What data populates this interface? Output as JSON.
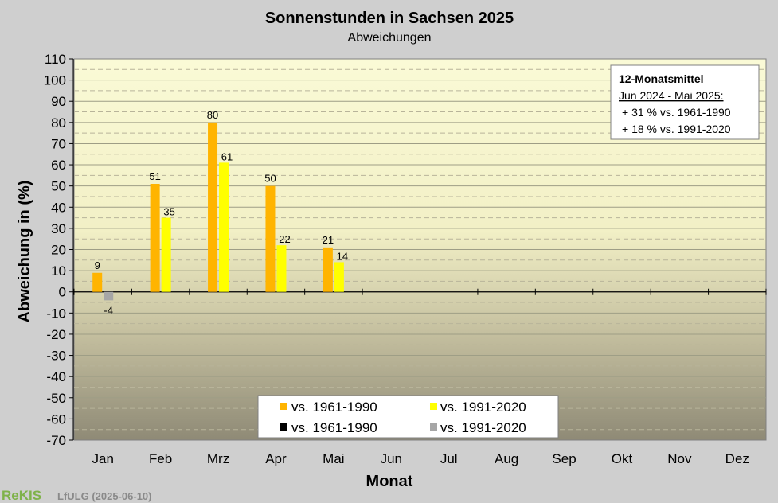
{
  "chart_data": {
    "type": "bar",
    "title": "Sonnenstunden  in Sachsen 2025",
    "subtitle": "Abweichungen",
    "xlabel": "Monat",
    "ylabel": "Abweichung in (%)",
    "ylim": [
      -70,
      110
    ],
    "yticks": [
      110,
      100,
      90,
      80,
      70,
      60,
      50,
      40,
      30,
      20,
      10,
      0,
      -10,
      -20,
      -30,
      -40,
      -50,
      -60,
      -70
    ],
    "categories": [
      "Jan",
      "Feb",
      "Mrz",
      "Apr",
      "Mai",
      "Jun",
      "Jul",
      "Aug",
      "Sep",
      "Okt",
      "Nov",
      "Dez"
    ],
    "grid": true,
    "series": [
      {
        "name": "vs. 1961-1990",
        "color": "#ffb400",
        "values": [
          9,
          51,
          80,
          50,
          21,
          null,
          null,
          null,
          null,
          null,
          null,
          null
        ]
      },
      {
        "name": "vs. 1991-2020",
        "color": "#ffff00",
        "values": [
          null,
          35,
          61,
          22,
          14,
          null,
          null,
          null,
          null,
          null,
          null,
          null
        ]
      },
      {
        "name": "vs. 1961-1990",
        "color": "#000000",
        "values": [
          null,
          null,
          null,
          null,
          null,
          null,
          null,
          null,
          null,
          null,
          null,
          null
        ]
      },
      {
        "name": "vs. 1991-2020",
        "color": "#a6a6a6",
        "values": [
          -4,
          null,
          null,
          null,
          null,
          null,
          null,
          null,
          null,
          null,
          null,
          null
        ]
      }
    ],
    "legend_position": "bottom-center",
    "annotation_box": {
      "title": "12-Monatsmittel",
      "period": "Jun 2024 - Mai 2025:",
      "line1": "+ 31 % vs. 1961-1990",
      "line2": "+ 18 % vs. 1991-2020"
    }
  },
  "footer": {
    "logo": "ReKIS",
    "source": "LfULG (2025-06-10)"
  }
}
